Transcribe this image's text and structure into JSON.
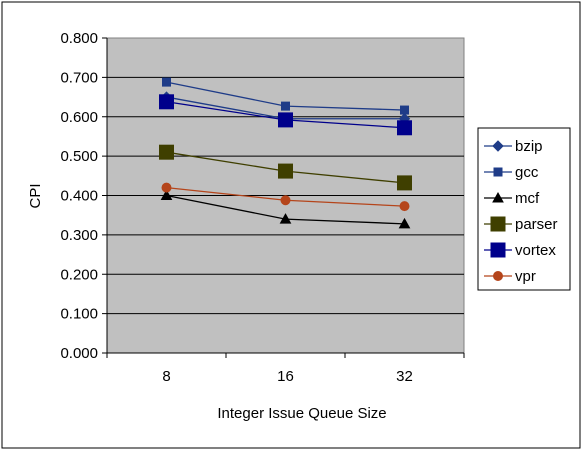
{
  "chart_data": {
    "type": "line",
    "title": "",
    "xlabel": "Integer Issue Queue Size",
    "ylabel": "CPI",
    "categories": [
      "8",
      "16",
      "32"
    ],
    "ylim": [
      0,
      0.8
    ],
    "yticks": [
      "0.000",
      "0.100",
      "0.200",
      "0.300",
      "0.400",
      "0.500",
      "0.600",
      "0.700",
      "0.800"
    ],
    "grid": "horizontal",
    "plot_background": "#c0c0c0",
    "legend_position": "right",
    "series": [
      {
        "name": "bzip",
        "values": [
          0.65,
          0.595,
          0.595
        ],
        "color": "#1f3c88",
        "marker": "diamond"
      },
      {
        "name": "gcc",
        "values": [
          0.688,
          0.627,
          0.617
        ],
        "color": "#1f3c88",
        "marker": "square-small"
      },
      {
        "name": "mcf",
        "values": [
          0.4,
          0.34,
          0.328
        ],
        "color": "#000000",
        "marker": "triangle"
      },
      {
        "name": "parser",
        "values": [
          0.51,
          0.462,
          0.432
        ],
        "color": "#3f3f00",
        "marker": "square-large"
      },
      {
        "name": "vortex",
        "values": [
          0.638,
          0.592,
          0.572
        ],
        "color": "#00008b",
        "marker": "square-large"
      },
      {
        "name": "vpr",
        "values": [
          0.42,
          0.388,
          0.373
        ],
        "color": "#b5451b",
        "marker": "circle"
      }
    ]
  }
}
